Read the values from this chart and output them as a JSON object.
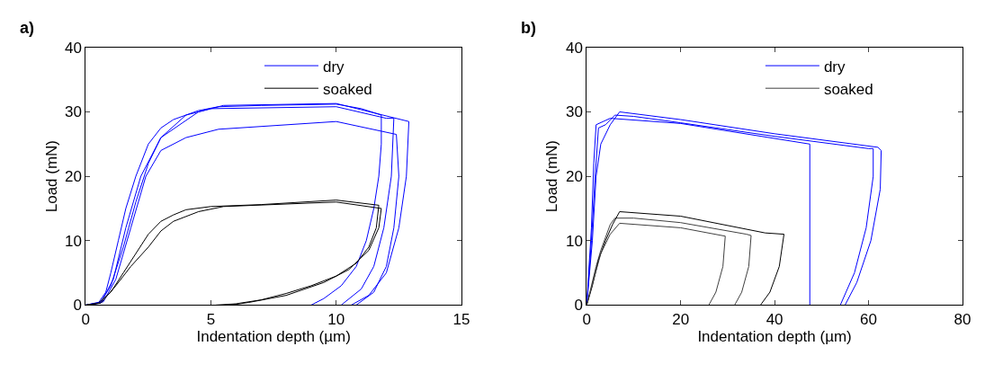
{
  "chart_data": [
    {
      "type": "line",
      "title": "a)",
      "xlabel": "Indentation depth (µm)",
      "ylabel": "Load (mN)",
      "xlim": [
        0,
        15
      ],
      "xticks": [
        0,
        5,
        10,
        15
      ],
      "ylim": [
        0,
        40
      ],
      "yticks": [
        0,
        10,
        20,
        30,
        40
      ],
      "legend": "top right",
      "marker": "none",
      "line_style": "solid",
      "series": [
        {
          "name": "dry",
          "color": "#0000ff",
          "x": [
            0,
            0.5,
            0.8,
            1,
            1.3,
            1.6,
            2,
            2.5,
            3,
            3.5,
            4.5,
            5.3,
            7,
            10,
            11,
            11.8,
            11.8,
            11.7,
            11.5,
            11.2,
            10.8,
            10.2,
            9.5,
            9
          ],
          "values": [
            0,
            0.3,
            2,
            5,
            10,
            15,
            20,
            25,
            27.5,
            28.8,
            30.2,
            30.8,
            31,
            31.2,
            30.5,
            29.5,
            25,
            20,
            15,
            10,
            6,
            3,
            1,
            0
          ]
        },
        {
          "color": "#0000ff",
          "x": [
            0,
            0.6,
            1,
            1.5,
            2,
            2.5,
            3,
            4,
            5,
            10,
            12,
            12.3,
            12.2,
            11.9,
            11.5,
            11,
            10.2
          ],
          "values": [
            0,
            0.5,
            3,
            9,
            16,
            22,
            26,
            29.5,
            30.5,
            30.8,
            29,
            29,
            20,
            12,
            6,
            2.5,
            0
          ]
        },
        {
          "color": "#0000ff",
          "x": [
            0,
            0.7,
            1.2,
            1.8,
            2.4,
            3,
            4,
            5.3,
            10,
            12.4,
            12.5,
            12.3,
            12,
            11.5,
            10.8
          ],
          "values": [
            0,
            0.5,
            4,
            12,
            20,
            24,
            26,
            27.3,
            28.5,
            26.5,
            20,
            12,
            6,
            2,
            0
          ]
        },
        {
          "color": "#0000ff",
          "x": [
            0,
            0.6,
            1.1,
            1.6,
            2.2,
            3,
            4.5,
            5.5,
            10,
            12.9,
            12.8,
            12.5,
            12,
            11.3,
            10.6
          ],
          "values": [
            0,
            0.3,
            4,
            12,
            20,
            26,
            30,
            31,
            31.3,
            28.5,
            20,
            12,
            5,
            1.5,
            0
          ]
        },
        {
          "name": "soaked",
          "color": "#000000",
          "x": [
            0,
            0.5,
            1,
            1.5,
            2,
            2.5,
            3,
            3.5,
            4,
            5,
            7,
            10,
            11.7,
            11.6,
            11.3,
            10.8,
            10,
            9,
            8,
            7,
            6,
            5.2
          ],
          "values": [
            0,
            0.3,
            2,
            5,
            8,
            11,
            13,
            14,
            14.8,
            15.3,
            15.6,
            16.3,
            15.5,
            12,
            9,
            6.5,
            4.5,
            3,
            1.8,
            0.8,
            0.2,
            0
          ]
        },
        {
          "color": "#000000",
          "x": [
            0,
            0.6,
            1.2,
            1.8,
            2.5,
            3,
            3.5,
            4.5,
            5.5,
            10,
            11.8,
            11.7,
            11.3,
            10.5,
            9.5,
            8,
            6.5,
            5.8
          ],
          "values": [
            0,
            0.3,
            3,
            6,
            9,
            11.5,
            13,
            14.5,
            15.3,
            16,
            15,
            12,
            8.5,
            5.5,
            3.5,
            1.5,
            0.4,
            0
          ]
        }
      ]
    },
    {
      "type": "line",
      "title": "b)",
      "xlabel": "Indentation depth (µm)",
      "ylabel": "Load (mN)",
      "xlim": [
        0,
        80
      ],
      "xticks": [
        0,
        20,
        40,
        60,
        80
      ],
      "ylim": [
        0,
        40
      ],
      "yticks": [
        0,
        10,
        20,
        30,
        40
      ],
      "legend": "top right",
      "marker": "none",
      "line_style": "solid",
      "series": [
        {
          "name": "dry",
          "color": "#0000ff",
          "x": [
            0,
            1,
            1.8,
            2.5,
            4,
            6,
            10,
            20,
            40,
            60,
            61,
            61,
            59.5,
            57,
            54
          ],
          "values": [
            0,
            10,
            20,
            27.5,
            28,
            29.5,
            29.3,
            28.3,
            26.2,
            24.3,
            24.3,
            20,
            12,
            5,
            0
          ]
        },
        {
          "color": "#0000ff",
          "x": [
            0,
            1.2,
            2,
            3,
            5,
            7,
            20,
            40,
            62,
            62.7,
            62.5,
            60.5,
            57.5,
            55
          ],
          "values": [
            0,
            10,
            20,
            25,
            28,
            30,
            28.8,
            26.6,
            24.5,
            24,
            18,
            10,
            3.5,
            0
          ]
        },
        {
          "color": "#0000ff",
          "x": [
            0,
            1,
            1.5,
            2,
            5,
            20,
            47.5,
            47.5
          ],
          "values": [
            0,
            12,
            22,
            28,
            29,
            28.2,
            25,
            0
          ]
        },
        {
          "name": "soaked",
          "color": "#404040",
          "x": [
            0,
            1,
            2,
            3,
            4,
            5,
            6,
            10,
            20,
            34,
            35,
            34.5,
            33,
            31.5
          ],
          "values": [
            0,
            3,
            6,
            8.5,
            10.5,
            12.5,
            13.5,
            13.5,
            12.8,
            11,
            10.8,
            6,
            2,
            0
          ]
        },
        {
          "color": "#000000",
          "x": [
            0,
            1.2,
            2.5,
            4,
            5.5,
            7,
            20,
            38,
            42,
            41,
            39,
            37
          ],
          "values": [
            0,
            3,
            7,
            10,
            12.5,
            14.5,
            13.8,
            11.2,
            11,
            6,
            2,
            0
          ]
        },
        {
          "color": "#404040",
          "x": [
            0,
            1.5,
            3,
            5,
            7,
            20,
            29.5,
            29,
            27.5,
            26
          ],
          "values": [
            0,
            4,
            8,
            11,
            12.7,
            12,
            10.7,
            6,
            2,
            0
          ]
        }
      ]
    }
  ]
}
